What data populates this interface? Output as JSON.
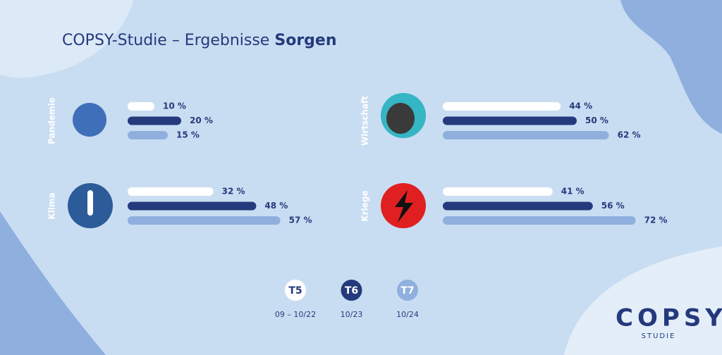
{
  "title": "COPSY-Studie – Ergebnisse",
  "title_emphasis": "Sorgen",
  "chart_data": {
    "type": "bar",
    "categories": [
      "Pandemie",
      "Wirtschaft",
      "Klima",
      "Kriege"
    ],
    "series": [
      {
        "name": "T5",
        "period": "09 – 10/22",
        "color": "#ffffff",
        "values": [
          10,
          44,
          32,
          41
        ],
        "value_labels": [
          "10 %",
          "44 %",
          "32 %",
          "41 %"
        ]
      },
      {
        "name": "T6",
        "period": "10/23",
        "color": "#253a7c",
        "values": [
          20,
          50,
          48,
          56
        ],
        "value_labels": [
          "20 %",
          "50 %",
          "48 %",
          "56 %"
        ]
      },
      {
        "name": "T7",
        "period": "10/24",
        "color": "#8fb0de",
        "values": [
          15,
          62,
          57,
          72
        ],
        "value_labels": [
          "15 %",
          "62 %",
          "57 %",
          "72 %"
        ]
      }
    ]
  },
  "logo": {
    "name": "COPSY",
    "subtitle": "STUDIE"
  }
}
